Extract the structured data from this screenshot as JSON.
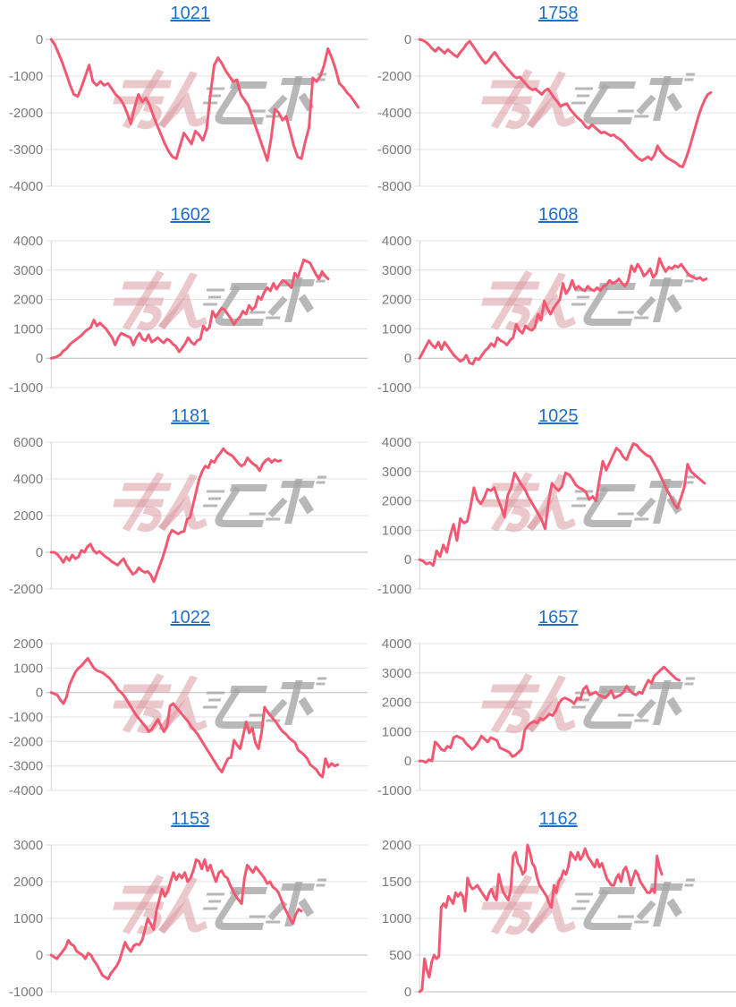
{
  "page": {
    "background": "#ffffff"
  },
  "style": {
    "line_color": "#f25872",
    "grid_color": "#e0e0e0",
    "zero_grid_color": "#bdbdbd",
    "axis_color": "#d2d2d2",
    "tick_label_color": "#7b7b7b",
    "title_color": "#1e6fc8"
  },
  "watermark": {
    "name": "site-logo-watermark",
    "pink": "#d99aa3",
    "gray": "#a6a6a6"
  },
  "chart_data": [
    {
      "type": "line",
      "title": "1021",
      "ylim": [
        -4000,
        0
      ],
      "yticks": [
        0,
        -1000,
        -2000,
        -3000,
        -4000
      ],
      "grid": true,
      "legend": false,
      "span": 0.97,
      "values": [
        0,
        -150,
        -400,
        -650,
        -950,
        -1250,
        -1500,
        -1550,
        -1300,
        -1000,
        -700,
        -1150,
        -1250,
        -1150,
        -1250,
        -1200,
        -1350,
        -1500,
        -1600,
        -1750,
        -2000,
        -2300,
        -1850,
        -1500,
        -1700,
        -1600,
        -1800,
        -2100,
        -2350,
        -2600,
        -2850,
        -3050,
        -3200,
        -3250,
        -2900,
        -2550,
        -2700,
        -2850,
        -2500,
        -2600,
        -2750,
        -2450,
        -1500,
        -700,
        -500,
        -650,
        -850,
        -1000,
        -1150,
        -1100,
        -1500,
        -1650,
        -1800,
        -2100,
        -2400,
        -2700,
        -3000,
        -3300,
        -2700,
        -1900,
        -2000,
        -2200,
        -2100,
        -2500,
        -2900,
        -3200,
        -3250,
        -2800,
        -2400,
        -1050,
        -1150,
        -1000,
        -700,
        -250,
        -500,
        -800,
        -1200,
        -1300,
        -1450,
        -1550,
        -1700,
        -1850
      ]
    },
    {
      "type": "line",
      "title": "1758",
      "ylim": [
        -8000,
        0
      ],
      "yticks": [
        0,
        -2000,
        -4000,
        -6000,
        -8000
      ],
      "grid": true,
      "legend": false,
      "span": 0.92,
      "values": [
        0,
        -50,
        -150,
        -300,
        -500,
        -650,
        -450,
        -600,
        -750,
        -550,
        -700,
        -850,
        -950,
        -700,
        -500,
        -250,
        -100,
        -350,
        -600,
        -850,
        -1100,
        -1300,
        -1150,
        -900,
        -700,
        -950,
        -1200,
        -1400,
        -1600,
        -1800,
        -2000,
        -2100,
        -2050,
        -2250,
        -2450,
        -2650,
        -2750,
        -2700,
        -2850,
        -3000,
        -2800,
        -2700,
        -2950,
        -3200,
        -3400,
        -3650,
        -3550,
        -3500,
        -3800,
        -4000,
        -4200,
        -4350,
        -4500,
        -4750,
        -4850,
        -4650,
        -4800,
        -4950,
        -5100,
        -5050,
        -5150,
        -5250,
        -5200,
        -5350,
        -5450,
        -5600,
        -5800,
        -6000,
        -6150,
        -6350,
        -6500,
        -6600,
        -6500,
        -6400,
        -6550,
        -6300,
        -5800,
        -6100,
        -6300,
        -6450,
        -6550,
        -6650,
        -6750,
        -6900,
        -6950,
        -6500,
        -6000,
        -5400,
        -4800,
        -4200,
        -3700,
        -3300,
        -3000,
        -2900
      ]
    },
    {
      "type": "line",
      "title": "1602",
      "ylim": [
        -1000,
        4000
      ],
      "yticks": [
        4000,
        3000,
        2000,
        1000,
        0,
        -1000
      ],
      "grid": true,
      "legend": false,
      "span": 0.875,
      "values": [
        0,
        20,
        60,
        120,
        250,
        320,
        450,
        550,
        620,
        700,
        780,
        900,
        980,
        1050,
        1300,
        1100,
        1200,
        1100,
        1000,
        850,
        700,
        450,
        700,
        850,
        800,
        750,
        700,
        450,
        700,
        850,
        650,
        600,
        800,
        550,
        620,
        700,
        600,
        520,
        650,
        600,
        480,
        400,
        220,
        350,
        500,
        700,
        550,
        470,
        600,
        650,
        1100,
        950,
        1050,
        1600,
        1400,
        1550,
        1700,
        1650,
        1500,
        1350,
        1150,
        1300,
        1400,
        1600,
        1500,
        1800,
        1650,
        1750,
        2100,
        2000,
        2250,
        2400,
        2300,
        2550,
        2350,
        2500,
        2650,
        2600,
        2500,
        2400,
        2900,
        2750,
        3050,
        3350,
        3300,
        3250,
        3050,
        2850,
        2700,
        2950,
        2800,
        2700
      ]
    },
    {
      "type": "line",
      "title": "1608",
      "ylim": [
        -1000,
        4000
      ],
      "yticks": [
        4000,
        3000,
        2000,
        1000,
        0,
        -1000
      ],
      "grid": true,
      "legend": false,
      "span": 0.905,
      "values": [
        0,
        200,
        400,
        600,
        450,
        350,
        550,
        300,
        550,
        400,
        250,
        100,
        0,
        -100,
        -50,
        100,
        -150,
        -200,
        0,
        -50,
        100,
        250,
        350,
        500,
        400,
        700,
        600,
        550,
        450,
        600,
        700,
        1150,
        950,
        850,
        1100,
        1000,
        950,
        1050,
        1500,
        1300,
        1950,
        1700,
        1500,
        1700,
        1850,
        2000,
        2550,
        2200,
        2350,
        2650,
        2350,
        2450,
        2350,
        2300,
        2450,
        2350,
        2300,
        2400,
        2300,
        2450,
        2500,
        2650,
        2550,
        2600,
        2700,
        2550,
        2450,
        2650,
        3150,
        2950,
        3200,
        3050,
        2800,
        2900,
        3050,
        2750,
        2900,
        3400,
        3150,
        2950,
        3100,
        3050,
        3150,
        3100,
        3200,
        3050,
        2900,
        2800,
        2750,
        2700,
        2750,
        2650,
        2700
      ]
    },
    {
      "type": "line",
      "title": "1181",
      "ylim": [
        -2000,
        6000
      ],
      "yticks": [
        6000,
        4000,
        2000,
        0,
        -2000
      ],
      "grid": true,
      "legend": false,
      "span": 0.725,
      "values": [
        0,
        0,
        -100,
        -300,
        -550,
        -250,
        -450,
        -150,
        -350,
        -250,
        100,
        0,
        300,
        450,
        100,
        -50,
        50,
        -100,
        -250,
        -350,
        -500,
        -600,
        -700,
        -500,
        -350,
        -700,
        -950,
        -1200,
        -1100,
        -850,
        -1000,
        -1100,
        -1050,
        -1250,
        -1600,
        -1150,
        -700,
        -250,
        300,
        900,
        1200,
        1100,
        1000,
        1100,
        1150,
        1800,
        1900,
        2600,
        3300,
        4000,
        4400,
        4700,
        4600,
        5000,
        4900,
        5200,
        5400,
        5650,
        5450,
        5350,
        5250,
        5050,
        4850,
        4700,
        4800,
        5150,
        4950,
        4800,
        4700,
        4450,
        4800,
        5000,
        5100,
        4900,
        5050,
        4950,
        5000
      ]
    },
    {
      "type": "line",
      "title": "1025",
      "ylim": [
        -1000,
        4000
      ],
      "yticks": [
        4000,
        3000,
        2000,
        1000,
        0,
        -1000
      ],
      "grid": true,
      "legend": false,
      "span": 0.9,
      "values": [
        0,
        -50,
        -150,
        -100,
        -200,
        300,
        100,
        500,
        250,
        800,
        1200,
        650,
        1400,
        1250,
        1300,
        1800,
        2450,
        2050,
        1900,
        2100,
        2400,
        2350,
        2450,
        2100,
        1800,
        1450,
        2200,
        2450,
        2950,
        2750,
        2550,
        2400,
        2150,
        1950,
        1750,
        1550,
        1350,
        1050,
        1950,
        2600,
        2450,
        2350,
        2500,
        2950,
        2900,
        2750,
        2550,
        2450,
        2400,
        2300,
        2050,
        2150,
        2000,
        2700,
        3350,
        3050,
        3300,
        3550,
        3800,
        3700,
        3500,
        3400,
        3700,
        3950,
        3900,
        3750,
        3650,
        3550,
        3500,
        3300,
        3100,
        2850,
        2600,
        2350,
        2150,
        1900,
        1750,
        2100,
        2450,
        3250,
        3000,
        2900,
        2800,
        2700,
        2600
      ]
    },
    {
      "type": "line",
      "title": "1022",
      "ylim": [
        -4000,
        2000
      ],
      "yticks": [
        2000,
        1000,
        0,
        -1000,
        -2000,
        -3000,
        -4000
      ],
      "grid": true,
      "legend": false,
      "span": 0.905,
      "values": [
        0,
        -50,
        -100,
        -300,
        -450,
        -200,
        300,
        600,
        850,
        1000,
        1100,
        1250,
        1400,
        1200,
        1000,
        900,
        850,
        800,
        700,
        600,
        450,
        300,
        100,
        0,
        -150,
        -350,
        -550,
        -750,
        -950,
        -1100,
        -1250,
        -1400,
        -1600,
        -1500,
        -1300,
        -1100,
        -1350,
        -1600,
        -1400,
        -550,
        -450,
        -600,
        -750,
        -900,
        -1050,
        -1200,
        -1400,
        -1550,
        -1700,
        -1900,
        -2100,
        -2300,
        -2500,
        -2700,
        -2900,
        -3100,
        -3250,
        -2950,
        -2700,
        -2650,
        -1950,
        -2150,
        -2300,
        -1750,
        -1200,
        -1650,
        -1450,
        -2050,
        -2300,
        -1650,
        -600,
        -800,
        -950,
        -1100,
        -1250,
        -1450,
        -1600,
        -1700,
        -1850,
        -1950,
        -2050,
        -2350,
        -2450,
        -2550,
        -2700,
        -2950,
        -3050,
        -3150,
        -3350,
        -3450,
        -2700,
        -3050,
        -2900,
        -3000,
        -2950
      ]
    },
    {
      "type": "line",
      "title": "1657",
      "ylim": [
        -1000,
        4000
      ],
      "yticks": [
        4000,
        3000,
        2000,
        1000,
        0,
        -1000
      ],
      "grid": true,
      "legend": false,
      "span": 0.82,
      "values": [
        0,
        0,
        -50,
        50,
        0,
        650,
        550,
        400,
        350,
        500,
        450,
        800,
        850,
        800,
        750,
        600,
        500,
        400,
        500,
        650,
        850,
        750,
        650,
        800,
        750,
        700,
        450,
        400,
        350,
        300,
        150,
        200,
        300,
        400,
        1050,
        1200,
        1300,
        1350,
        1300,
        1450,
        1400,
        1500,
        1600,
        1550,
        1700,
        1950,
        2100,
        2150,
        2100,
        2050,
        1950,
        2150,
        2100,
        2450,
        2550,
        2250,
        2300,
        2350,
        2250,
        2200,
        2150,
        2250,
        2400,
        2150,
        2200,
        2250,
        2350,
        2550,
        2400,
        2300,
        2250,
        2350,
        2300,
        2550,
        2750,
        2650,
        2900,
        3000,
        3100,
        3200,
        3100,
        3000,
        2900,
        2800,
        2750
      ]
    },
    {
      "type": "line",
      "title": "1153",
      "ylim": [
        -1000,
        3000
      ],
      "yticks": [
        3000,
        2000,
        1000,
        0,
        -1000
      ],
      "grid": true,
      "legend": false,
      "span": 0.79,
      "values": [
        0,
        -50,
        -100,
        0,
        100,
        200,
        400,
        300,
        250,
        100,
        50,
        0,
        -100,
        50,
        0,
        -150,
        -250,
        -400,
        -550,
        -600,
        -650,
        -500,
        -400,
        -300,
        -150,
        100,
        350,
        200,
        100,
        250,
        300,
        280,
        400,
        700,
        1000,
        850,
        700,
        1200,
        1500,
        1800,
        1600,
        1750,
        2000,
        2250,
        2050,
        2200,
        2100,
        2250,
        2000,
        2100,
        2300,
        2600,
        2550,
        2350,
        2600,
        2300,
        2450,
        2200,
        2000,
        2250,
        2300,
        2150,
        2100,
        1900,
        1750,
        1600,
        1500,
        1400,
        2100,
        2450,
        2350,
        2250,
        2400,
        2300,
        2200,
        2100,
        1950,
        2000,
        1850,
        1800,
        1700,
        1500,
        1300,
        1150,
        1000,
        850,
        1100,
        1250,
        1200
      ]
    },
    {
      "type": "line",
      "title": "1162",
      "ylim": [
        0,
        2000
      ],
      "yticks": [
        2000,
        1500,
        1000,
        500,
        0
      ],
      "grid": true,
      "legend": false,
      "span": 0.765,
      "values": [
        0,
        30,
        450,
        300,
        200,
        400,
        500,
        450,
        480,
        1150,
        1200,
        1150,
        1300,
        1250,
        1200,
        1350,
        1300,
        1350,
        1300,
        1100,
        1550,
        1450,
        1400,
        1420,
        1450,
        1400,
        1350,
        1300,
        1250,
        1350,
        1400,
        1300,
        1250,
        1600,
        1450,
        1350,
        1300,
        1250,
        1400,
        1850,
        1900,
        1750,
        1700,
        1600,
        1650,
        2000,
        1900,
        1750,
        1700,
        1550,
        1450,
        1400,
        1350,
        1300,
        1200,
        1150,
        1450,
        1350,
        1500,
        1550,
        1650,
        1600,
        1700,
        1900,
        1850,
        1800,
        1900,
        1800,
        1850,
        1950,
        1850,
        1800,
        1750,
        1700,
        1800,
        1700,
        1750,
        1650,
        1550,
        1500,
        1450,
        1450,
        1550,
        1600,
        1500,
        1650,
        1700,
        1600,
        1450,
        1550,
        1650,
        1600,
        1500,
        1450,
        1400,
        1350,
        1350,
        1400,
        1350,
        1850,
        1700,
        1600
      ]
    }
  ]
}
